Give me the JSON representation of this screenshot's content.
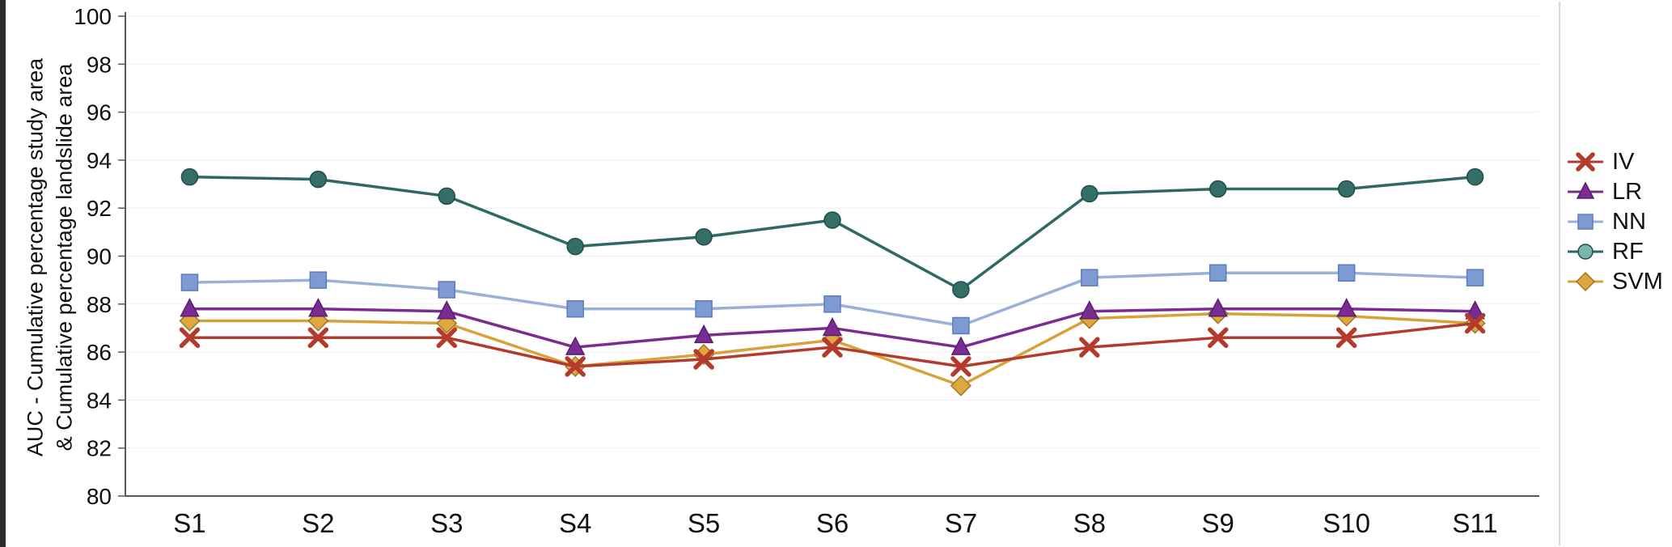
{
  "chart_data": {
    "type": "line",
    "title": "",
    "ylabel_line1": "AUC - Cumulative percentage study area",
    "ylabel_line2": "& Cumulative percentage landslide area",
    "xlabel": "",
    "categories": [
      "S1",
      "S2",
      "S3",
      "S4",
      "S5",
      "S6",
      "S7",
      "S8",
      "S9",
      "S10",
      "S11"
    ],
    "ylim": [
      80,
      100
    ],
    "ytick_step": 2,
    "grid": "faint-horizontal",
    "legend_position": "right",
    "axis_color": "#595959",
    "gridline_color": "#f0f0f0",
    "plot_right_border_color": "#d9d9d9",
    "series": [
      {
        "name": "IV",
        "marker": "x",
        "color": "#b43a2c",
        "marker_fill": "#b43a2c",
        "marker_stroke": "#8f2d21",
        "values": [
          86.6,
          86.6,
          86.6,
          85.4,
          85.7,
          86.2,
          85.4,
          86.2,
          86.6,
          86.6,
          87.2
        ]
      },
      {
        "name": "LR",
        "marker": "triangle",
        "color": "#7b2c92",
        "marker_fill": "#7b2c92",
        "marker_stroke": "#5a1e6e",
        "values": [
          87.8,
          87.8,
          87.7,
          86.2,
          86.7,
          87.0,
          86.2,
          87.7,
          87.8,
          87.8,
          87.7
        ]
      },
      {
        "name": "NN",
        "marker": "square",
        "color": "#98b0da",
        "marker_fill": "#7e9ad2",
        "marker_stroke": "#5b7dbd",
        "values": [
          88.9,
          89.0,
          88.6,
          87.8,
          87.8,
          88.0,
          87.1,
          89.1,
          89.3,
          89.3,
          89.1
        ]
      },
      {
        "name": "RF",
        "marker": "circle",
        "color": "#2e6a63",
        "marker_fill": "#346e67",
        "marker_stroke": "#1f4f4a",
        "legend_marker_fill": "#7cb4ac",
        "values": [
          93.3,
          93.2,
          92.5,
          90.4,
          90.8,
          91.5,
          88.6,
          92.6,
          92.8,
          92.8,
          93.3
        ]
      },
      {
        "name": "SVM",
        "marker": "diamond",
        "color": "#d8a23b",
        "marker_fill": "#dfa83e",
        "marker_stroke": "#a1762a",
        "values": [
          87.3,
          87.3,
          87.2,
          85.4,
          85.9,
          86.5,
          84.6,
          87.4,
          87.6,
          87.5,
          87.2
        ]
      }
    ]
  }
}
